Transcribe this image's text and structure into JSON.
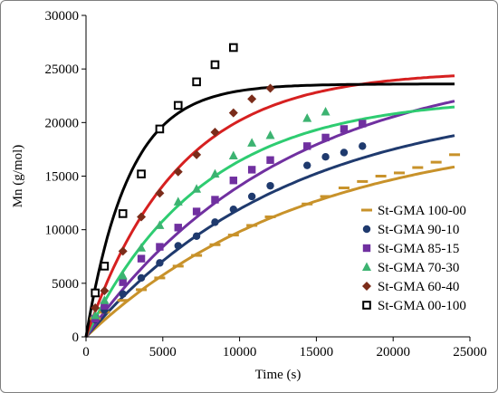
{
  "chart_data": {
    "type": "scatter",
    "title": "",
    "xlabel": "Time (s)",
    "ylabel": "Mn (g/mol)",
    "xlim": [
      0,
      25000
    ],
    "ylim": [
      0,
      30000
    ],
    "xticks": [
      "0",
      "5000",
      "10000",
      "15000",
      "20000",
      "25000"
    ],
    "yticks": [
      "0",
      "5000",
      "10000",
      "15000",
      "20000",
      "25000",
      "30000"
    ],
    "grid": false,
    "legend_position": "bottom-right",
    "series": [
      {
        "name": "St-GMA 100-00",
        "color": "#c8922a",
        "marker": "dash",
        "points": [
          [
            600,
            1700
          ],
          [
            1200,
            2300
          ],
          [
            2400,
            3400
          ],
          [
            3600,
            4400
          ],
          [
            4800,
            5500
          ],
          [
            6000,
            6600
          ],
          [
            7200,
            7600
          ],
          [
            8400,
            8600
          ],
          [
            9600,
            9500
          ],
          [
            10800,
            10400
          ],
          [
            12000,
            11200
          ],
          [
            14400,
            12400
          ],
          [
            15600,
            13100
          ],
          [
            16800,
            13900
          ],
          [
            18000,
            14500
          ],
          [
            19200,
            15000
          ],
          [
            20400,
            15300
          ],
          [
            21600,
            15800
          ],
          [
            22800,
            16300
          ],
          [
            24000,
            17000
          ]
        ],
        "fit": {
          "a": 19500,
          "k": 7e-05
        }
      },
      {
        "name": "St-GMA 90-10",
        "color": "#1f3a6e",
        "marker": "circle",
        "points": [
          [
            600,
            1600
          ],
          [
            1200,
            2500
          ],
          [
            2400,
            4000
          ],
          [
            3600,
            5500
          ],
          [
            4800,
            6900
          ],
          [
            6000,
            8500
          ],
          [
            7200,
            9400
          ],
          [
            8400,
            10700
          ],
          [
            9600,
            11900
          ],
          [
            10800,
            13100
          ],
          [
            12000,
            14100
          ],
          [
            14400,
            16000
          ],
          [
            15600,
            16800
          ],
          [
            16800,
            17200
          ],
          [
            18000,
            17800
          ]
        ],
        "fit": {
          "a": 22400,
          "k": 7.6e-05
        }
      },
      {
        "name": "St-GMA 85-15",
        "color": "#7030a0",
        "marker": "square",
        "points": [
          [
            600,
            1700
          ],
          [
            1200,
            2900
          ],
          [
            2400,
            5100
          ],
          [
            3600,
            7300
          ],
          [
            4800,
            8400
          ],
          [
            6000,
            10200
          ],
          [
            7200,
            11700
          ],
          [
            8400,
            12800
          ],
          [
            9600,
            14600
          ],
          [
            10800,
            15600
          ],
          [
            12000,
            16500
          ],
          [
            14400,
            17800
          ],
          [
            15600,
            18600
          ],
          [
            16800,
            19400
          ],
          [
            18000,
            19900
          ]
        ],
        "fit": {
          "a": 26000,
          "k": 7.8e-05
        }
      },
      {
        "name": "St-GMA 70-30",
        "color": "#3cb371",
        "marker": "triangle",
        "points": [
          [
            600,
            2000
          ],
          [
            1200,
            3400
          ],
          [
            2400,
            5700
          ],
          [
            3600,
            8300
          ],
          [
            4800,
            10400
          ],
          [
            6000,
            12600
          ],
          [
            7200,
            13800
          ],
          [
            8400,
            15200
          ],
          [
            9600,
            16900
          ],
          [
            10800,
            18100
          ],
          [
            12000,
            18800
          ],
          [
            14400,
            20400
          ],
          [
            15600,
            21000
          ]
        ],
        "fit": {
          "a": 22400,
          "k": 0.000132
        }
      },
      {
        "name": "St-GMA 60-40",
        "color": "#7b2c1a",
        "marker": "diamond",
        "points": [
          [
            600,
            2700
          ],
          [
            1200,
            4300
          ],
          [
            2400,
            8000
          ],
          [
            3600,
            11200
          ],
          [
            4800,
            13400
          ],
          [
            6000,
            15400
          ],
          [
            7200,
            17000
          ],
          [
            8400,
            19100
          ],
          [
            9600,
            20900
          ],
          [
            10800,
            22200
          ],
          [
            12000,
            23200
          ]
        ],
        "fit": {
          "a": 24800,
          "k": 0.000168
        }
      },
      {
        "name": "St-GMA 00-100",
        "color": "#000000",
        "marker": "open-square",
        "points": [
          [
            600,
            4100
          ],
          [
            1200,
            6600
          ],
          [
            2400,
            11500
          ],
          [
            3600,
            15200
          ],
          [
            4800,
            19400
          ],
          [
            6000,
            21600
          ],
          [
            7200,
            23800
          ],
          [
            8400,
            25400
          ],
          [
            9600,
            27000
          ]
        ],
        "fit": {
          "a": 23600,
          "k": 0.00036
        }
      }
    ],
    "fit_line_colors": [
      "#c8922a",
      "#1f3a6e",
      "#7030a0",
      "#2ecc71",
      "#d62020",
      "#000000"
    ]
  }
}
